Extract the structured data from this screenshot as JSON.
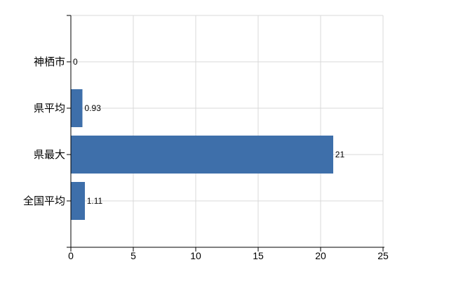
{
  "chart_data": {
    "type": "bar",
    "orientation": "horizontal",
    "title": "",
    "xlabel": "",
    "ylabel": "",
    "categories": [
      "神栖市",
      "県平均",
      "県最大",
      "全国平均"
    ],
    "values": [
      0,
      0.93,
      21,
      1.11
    ],
    "value_labels": [
      "0",
      "0.93",
      "21",
      "1.11"
    ],
    "xlim": [
      0,
      25
    ],
    "x_ticks": [
      0,
      5,
      10,
      15,
      20,
      25
    ],
    "x_tick_labels": [
      "0",
      "5",
      "10",
      "15",
      "20",
      "25"
    ],
    "grid": true,
    "legend": false,
    "colors": {
      "bar": "#3E6FAA",
      "grid": "#D8D8D8",
      "axis": "#000000",
      "text": "#000000",
      "background": "#FFFFFF"
    }
  }
}
